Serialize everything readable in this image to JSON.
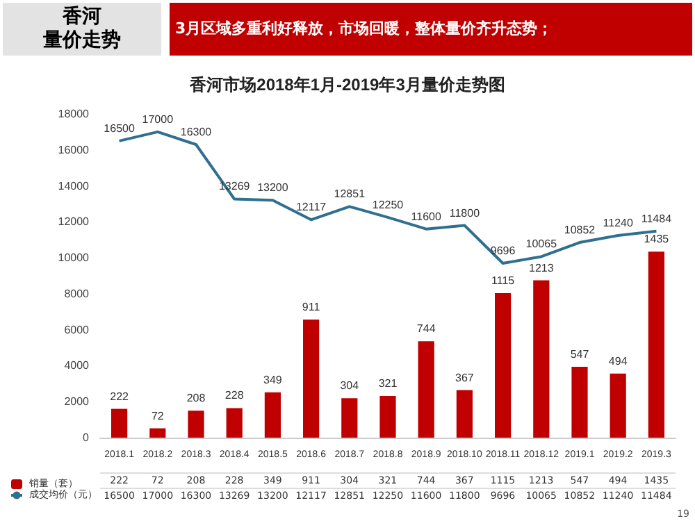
{
  "chart_data": {
    "type": "bar",
    "title": "香河市场2018年1月-2019年3月量价走势图",
    "subtitle": "3月区域多重利好释放，市场回暖，整体量价齐升态势；",
    "annotations": [
      "香河",
      "量价走势",
      "19",
      "222",
      "72",
      "208",
      "228",
      "349",
      "911",
      "304",
      "321",
      "744",
      "367",
      "1115",
      "1213",
      "547",
      "494",
      "1435",
      "16500",
      "17000",
      "16300",
      "13269",
      "13200",
      "12117",
      "12851",
      "12250",
      "11600",
      "11800",
      "9696",
      "10065",
      "10852",
      "11240",
      "11484"
    ],
    "categories": [
      "2018.1",
      "2018.2",
      "2018.3",
      "2018.4",
      "2018.5",
      "2018.6",
      "2018.7",
      "2018.8",
      "2018.9",
      "2018.10",
      "2018.11",
      "2018.12",
      "2019.1",
      "2019.2",
      "2019.3"
    ],
    "series": [
      {
        "name": "销量（套）",
        "axis": "y2",
        "color": "#c00000",
        "values": [
          222,
          72,
          208,
          228,
          349,
          911,
          304,
          321,
          744,
          367,
          1115,
          1213,
          547,
          494,
          1435
        ],
        "value_labels": [
          "222",
          "72",
          "208",
          "228",
          "349",
          "911",
          "304",
          "321",
          "744",
          "367",
          "1115",
          "1213",
          "547",
          "494",
          "1435"
        ]
      },
      {
        "name": "成交均价（元）",
        "type": "line",
        "color": "#2f6f8f",
        "values": [
          16500,
          17000,
          16300,
          13269,
          13200,
          12117,
          12851,
          12250,
          11600,
          11800,
          9696,
          10065,
          10852,
          11240,
          11484
        ],
        "value_labels": [
          "16500",
          "17000",
          "16300",
          "13269",
          "13200",
          "12117",
          "12851",
          "12250",
          "11600",
          "11800",
          "9696",
          "10065",
          "10852",
          "11240",
          "11484"
        ]
      }
    ],
    "ylim": [
      0,
      18000
    ],
    "yticks": [
      0,
      2000,
      4000,
      6000,
      8000,
      10000,
      12000,
      14000,
      16000,
      18000
    ],
    "legend": "bottom left",
    "grid": false,
    "marker": "none",
    "line_style": "solid"
  }
}
